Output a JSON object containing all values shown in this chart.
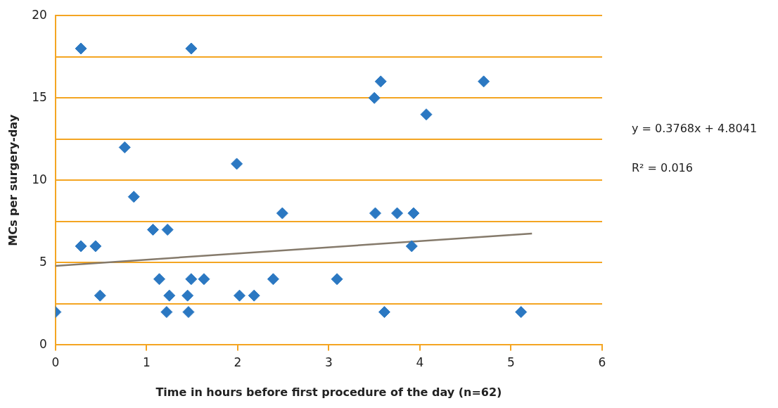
{
  "chart_data": {
    "type": "scatter",
    "xlabel": "Time in hours before first procedure of the day (n=62)",
    "ylabel": "MCs per surgery-day",
    "xlim": [
      0,
      6
    ],
    "xticks": [
      0,
      1,
      2,
      3,
      4,
      5,
      6
    ],
    "ylim": [
      0,
      20
    ],
    "yticks": [
      0,
      {
        "value": 2.5,
        "label": null
      },
      5,
      {
        "value": 7.5,
        "label": null
      },
      10,
      {
        "value": 12.5,
        "label": null
      },
      15,
      {
        "value": 17.5,
        "label": null
      },
      20
    ],
    "grid": "y",
    "legend": false,
    "marker": "diamond",
    "annotations": [
      "y = 0.3768x + 4.8041",
      "R² = 0.016"
    ],
    "series": [
      {
        "type": "scatter",
        "color": "#2b78c2",
        "x": [
          0,
          0.28,
          0.28,
          0.44,
          0.49,
          0.76,
          0.86,
          1.07,
          1.23,
          1.14,
          1.25,
          1.22,
          1.45,
          1.46,
          1.49,
          1.49,
          1.63,
          1.99,
          2.02,
          2.18,
          2.39,
          2.49,
          3.09,
          3.5,
          3.57,
          3.51,
          3.61,
          3.75,
          3.91,
          3.93,
          4.07,
          4.7,
          5.11
        ],
        "values": [
          2,
          18,
          6,
          6,
          3,
          12,
          9,
          7,
          7,
          4,
          3,
          2,
          3,
          2,
          4,
          18,
          4,
          11,
          3,
          3,
          4,
          8,
          4,
          15,
          16,
          8,
          2,
          8,
          6,
          8,
          14,
          16,
          2
        ]
      },
      {
        "type": "line",
        "color": "#857a6b",
        "marker": "none",
        "x": [
          0,
          5.23
        ],
        "values": [
          4.8,
          6.77
        ]
      }
    ]
  }
}
